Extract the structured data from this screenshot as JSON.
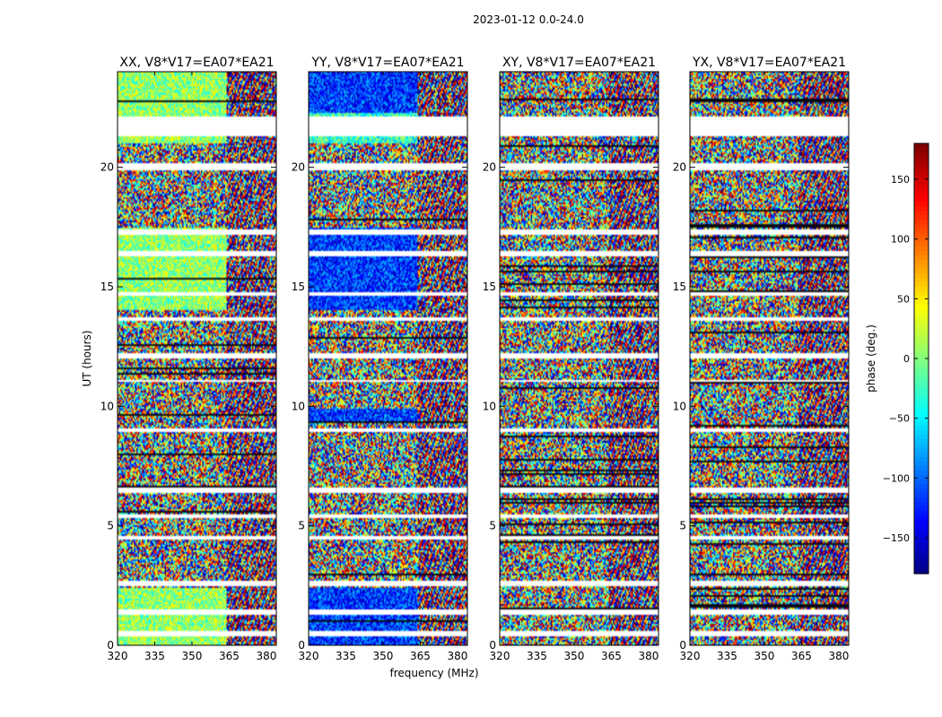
{
  "chart_data": {
    "type": "heatmap",
    "suptitle": "2023-01-12 0.0-24.0",
    "panels": [
      {
        "title": "XX, V8*V17=EA07*EA21",
        "pattern": "xx"
      },
      {
        "title": "YY, V8*V17=EA07*EA21",
        "pattern": "yy"
      },
      {
        "title": "XY, V8*V17=EA07*EA21",
        "pattern": "cross"
      },
      {
        "title": "YX, V8*V17=EA07*EA21",
        "pattern": "cross"
      }
    ],
    "xlabel": "frequency (MHz)",
    "ylabel": "UT (hours)",
    "xlim": [
      320,
      384
    ],
    "ylim": [
      0,
      24
    ],
    "xticks": [
      320,
      335,
      350,
      365,
      380
    ],
    "yticks": [
      0,
      5,
      10,
      15,
      20
    ],
    "colorbar": {
      "label": "phase (deg.)",
      "vmin": -180,
      "vmax": 180,
      "ticks": [
        -150,
        -100,
        -50,
        0,
        50,
        100,
        150
      ],
      "tick_labels": [
        "−150",
        "−100",
        "−50",
        "0",
        "50",
        "100",
        "150"
      ],
      "colormap": "jet"
    },
    "flagged_time_ranges_hours": [
      [
        21.3,
        22.1
      ],
      [
        19.9,
        20.2
      ],
      [
        17.2,
        17.4
      ],
      [
        16.3,
        16.5
      ],
      [
        14.6,
        14.8
      ],
      [
        13.55,
        13.7
      ],
      [
        12.0,
        12.2
      ],
      [
        11.0,
        11.1
      ],
      [
        8.9,
        9.1
      ],
      [
        6.4,
        6.6
      ],
      [
        5.3,
        5.5
      ],
      [
        4.4,
        4.6
      ],
      [
        2.5,
        2.7
      ],
      [
        1.3,
        1.5
      ],
      [
        0.4,
        0.6
      ]
    ],
    "frequency_channel_break_MHz": 364
  }
}
